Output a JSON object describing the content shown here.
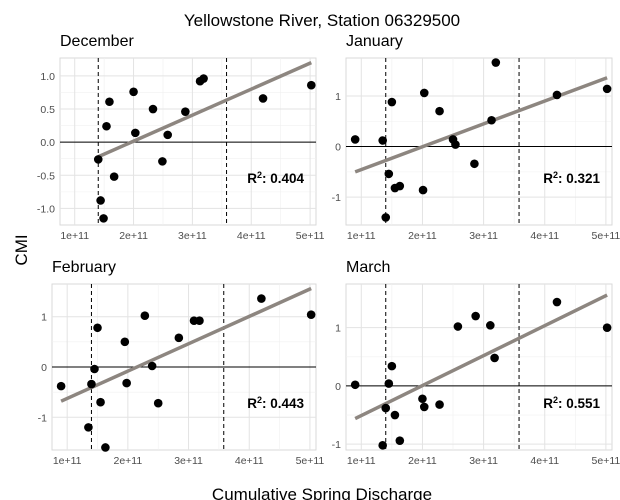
{
  "figure": {
    "title": "Yellowstone River, Station 06329500",
    "ylabel": "CMI",
    "xlabel": "Cumulative Spring Discharge"
  },
  "chart_data": [
    {
      "type": "scatter",
      "title": "December",
      "r2_label": "0.404",
      "xlim": [
        75000000000,
        510000000000
      ],
      "ylim": [
        -1.25,
        1.27
      ],
      "xticks": [
        100000000000,
        200000000000,
        300000000000,
        400000000000,
        500000000000
      ],
      "xtick_labels": [
        "1e+11",
        "2e+11",
        "3e+11",
        "4e+11",
        "5e+11"
      ],
      "yticks": [
        -1.0,
        -0.5,
        0.0,
        0.5,
        1.0
      ],
      "ytick_labels": [
        "-1.0",
        "-0.5",
        "0.0",
        "0.5",
        "1.0"
      ],
      "vlines": [
        140000000000,
        358000000000
      ],
      "hline": 0,
      "fit": {
        "x": [
          140000000000,
          502000000000
        ],
        "y": [
          -0.22,
          1.2
        ]
      },
      "points": [
        {
          "x": 140000000000,
          "y": -0.26
        },
        {
          "x": 144000000000,
          "y": -0.88
        },
        {
          "x": 149000000000,
          "y": -1.15
        },
        {
          "x": 154000000000,
          "y": 0.24
        },
        {
          "x": 159000000000,
          "y": 0.61
        },
        {
          "x": 167000000000,
          "y": -0.52
        },
        {
          "x": 200000000000,
          "y": 0.76
        },
        {
          "x": 203000000000,
          "y": 0.14
        },
        {
          "x": 233000000000,
          "y": 0.5
        },
        {
          "x": 249000000000,
          "y": -0.29
        },
        {
          "x": 258000000000,
          "y": 0.11
        },
        {
          "x": 288000000000,
          "y": 0.46
        },
        {
          "x": 313000000000,
          "y": 0.92
        },
        {
          "x": 319000000000,
          "y": 0.96
        },
        {
          "x": 420000000000,
          "y": 0.66
        },
        {
          "x": 502000000000,
          "y": 0.86
        }
      ]
    },
    {
      "type": "scatter",
      "title": "January",
      "r2_label": "0.321",
      "xlim": [
        75000000000,
        510000000000
      ],
      "ylim": [
        -1.55,
        1.75
      ],
      "xticks": [
        100000000000,
        200000000000,
        300000000000,
        400000000000,
        500000000000
      ],
      "xtick_labels": [
        "1e+11",
        "2e+11",
        "3e+11",
        "4e+11",
        "5e+11"
      ],
      "yticks": [
        -1,
        0,
        1
      ],
      "ytick_labels": [
        "-1",
        "0",
        "1"
      ],
      "vlines": [
        140000000000,
        358000000000
      ],
      "hline": 0,
      "fit": {
        "x": [
          90000000000,
          502000000000
        ],
        "y": [
          -0.5,
          1.36
        ]
      },
      "points": [
        {
          "x": 90000000000,
          "y": 0.14
        },
        {
          "x": 135000000000,
          "y": 0.12
        },
        {
          "x": 140000000000,
          "y": -1.4
        },
        {
          "x": 145000000000,
          "y": -0.54
        },
        {
          "x": 150000000000,
          "y": 0.88
        },
        {
          "x": 155000000000,
          "y": -0.82
        },
        {
          "x": 163000000000,
          "y": -0.78
        },
        {
          "x": 201000000000,
          "y": -0.86
        },
        {
          "x": 203000000000,
          "y": 1.06
        },
        {
          "x": 228000000000,
          "y": 0.7
        },
        {
          "x": 250000000000,
          "y": 0.14
        },
        {
          "x": 254000000000,
          "y": 0.04
        },
        {
          "x": 285000000000,
          "y": -0.34
        },
        {
          "x": 313000000000,
          "y": 0.52
        },
        {
          "x": 320000000000,
          "y": 1.66
        },
        {
          "x": 420000000000,
          "y": 1.02
        },
        {
          "x": 502000000000,
          "y": 1.14
        }
      ]
    },
    {
      "type": "scatter",
      "title": "February",
      "r2_label": "0.443",
      "xlim": [
        75000000000,
        510000000000
      ],
      "ylim": [
        -1.65,
        1.65
      ],
      "xticks": [
        100000000000,
        200000000000,
        300000000000,
        400000000000,
        500000000000
      ],
      "xtick_labels": [
        "1e+11",
        "2e+11",
        "3e+11",
        "4e+11",
        "5e+11"
      ],
      "yticks": [
        -1,
        0,
        1
      ],
      "ytick_labels": [
        "-1",
        "0",
        "1"
      ],
      "vlines": [
        140000000000,
        358000000000
      ],
      "hline": 0,
      "fit": {
        "x": [
          90000000000,
          502000000000
        ],
        "y": [
          -0.68,
          1.56
        ]
      },
      "points": [
        {
          "x": 90000000000,
          "y": -0.38
        },
        {
          "x": 135000000000,
          "y": -1.2
        },
        {
          "x": 140000000000,
          "y": -0.34
        },
        {
          "x": 145000000000,
          "y": -0.04
        },
        {
          "x": 150000000000,
          "y": 0.78
        },
        {
          "x": 155000000000,
          "y": -0.7
        },
        {
          "x": 163000000000,
          "y": -1.6
        },
        {
          "x": 195000000000,
          "y": 0.5
        },
        {
          "x": 198000000000,
          "y": -0.32
        },
        {
          "x": 228000000000,
          "y": 1.02
        },
        {
          "x": 240000000000,
          "y": 0.02
        },
        {
          "x": 250000000000,
          "y": -0.72
        },
        {
          "x": 284000000000,
          "y": 0.58
        },
        {
          "x": 309000000000,
          "y": 0.92
        },
        {
          "x": 318000000000,
          "y": 0.92
        },
        {
          "x": 420000000000,
          "y": 1.36
        },
        {
          "x": 502000000000,
          "y": 1.04
        }
      ]
    },
    {
      "type": "scatter",
      "title": "March",
      "r2_label": "0.551",
      "xlim": [
        75000000000,
        510000000000
      ],
      "ylim": [
        -1.1,
        1.75
      ],
      "xticks": [
        100000000000,
        200000000000,
        300000000000,
        400000000000,
        500000000000
      ],
      "xtick_labels": [
        "1e+11",
        "2e+11",
        "3e+11",
        "4e+11",
        "5e+11"
      ],
      "yticks": [
        -1,
        0,
        1
      ],
      "ytick_labels": [
        "-1",
        "0",
        "1"
      ],
      "vlines": [
        140000000000,
        358000000000
      ],
      "hline": 0,
      "fit": {
        "x": [
          90000000000,
          502000000000
        ],
        "y": [
          -0.56,
          1.56
        ]
      },
      "points": [
        {
          "x": 90000000000,
          "y": 0.02
        },
        {
          "x": 135000000000,
          "y": -1.02
        },
        {
          "x": 140000000000,
          "y": -0.38
        },
        {
          "x": 145000000000,
          "y": 0.04
        },
        {
          "x": 150000000000,
          "y": 0.34
        },
        {
          "x": 155000000000,
          "y": -0.5
        },
        {
          "x": 163000000000,
          "y": -0.94
        },
        {
          "x": 200000000000,
          "y": -0.22
        },
        {
          "x": 203000000000,
          "y": -0.36
        },
        {
          "x": 228000000000,
          "y": -0.32
        },
        {
          "x": 258000000000,
          "y": 1.02
        },
        {
          "x": 287000000000,
          "y": 1.2
        },
        {
          "x": 311000000000,
          "y": 1.04
        },
        {
          "x": 318000000000,
          "y": 0.48
        },
        {
          "x": 420000000000,
          "y": 1.44
        },
        {
          "x": 502000000000,
          "y": 1.0
        }
      ]
    }
  ]
}
